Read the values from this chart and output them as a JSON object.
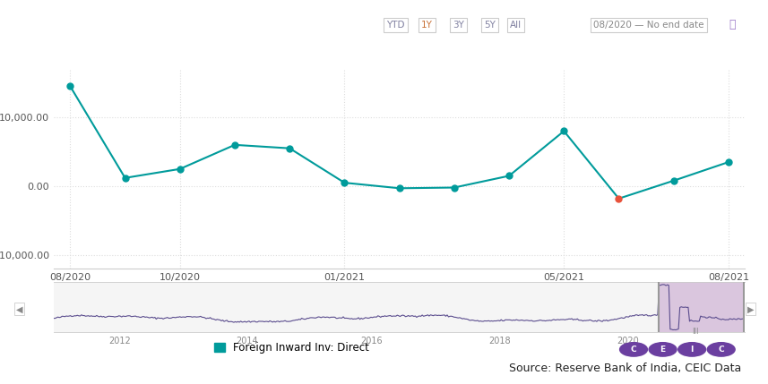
{
  "main_x_labels": [
    "08/2020",
    "10/2020",
    "01/2021",
    "05/2021",
    "08/2021"
  ],
  "line_color": "#009B9B",
  "highlight_color": "#E8523A",
  "background_color": "#FFFFFF",
  "grid_color": "#CCCCCC",
  "mini_line_color": "#5B4D8E",
  "mini_highlight_color": "#C8A8D0",
  "legend_label": "Foreign Inward Inv: Direct",
  "source_text": "Source: Reserve Bank of India, CEIC Data",
  "navbar_labels": [
    "YTD",
    "1Y",
    "3Y",
    "5Y",
    "All"
  ],
  "navbar_active": "1Y",
  "date_range_text": "08/2020 — No end date",
  "data_points": [
    {
      "month": 0,
      "value": 14500
    },
    {
      "month": 1,
      "value": 1200
    },
    {
      "month": 2,
      "value": 2500
    },
    {
      "month": 3,
      "value": 6000
    },
    {
      "month": 4,
      "value": 5500
    },
    {
      "month": 5,
      "value": 500
    },
    {
      "month": 6,
      "value": -300
    },
    {
      "month": 7,
      "value": -200
    },
    {
      "month": 8,
      "value": 1500
    },
    {
      "month": 9,
      "value": 8000
    },
    {
      "month": 10,
      "value": -1800
    },
    {
      "month": 11,
      "value": 800
    },
    {
      "month": 12,
      "value": 3500
    }
  ],
  "highlight_index": 10,
  "ylim": [
    -12000,
    17000
  ],
  "figsize": [
    8.57,
    4.29
  ],
  "dpi": 100
}
